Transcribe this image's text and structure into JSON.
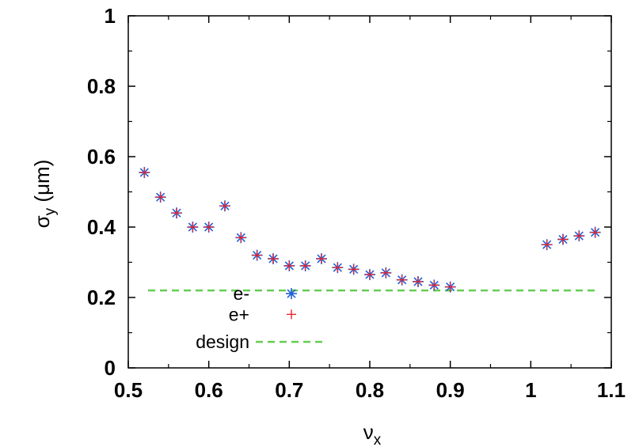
{
  "chart_data": {
    "type": "scatter",
    "title": "",
    "xlabel_main": "ν",
    "xlabel_sub": "x",
    "ylabel_main": "σ",
    "ylabel_sub": "y",
    "ylabel_unit": " (μm)",
    "xlim": [
      0.5,
      1.1
    ],
    "ylim": [
      0,
      1
    ],
    "x_ticks": [
      "0.5",
      "0.6",
      "0.7",
      "0.8",
      "0.9",
      "1",
      "1.1"
    ],
    "y_ticks": [
      "0",
      "0.2",
      "0.4",
      "0.6",
      "0.8",
      "1"
    ],
    "grid": false,
    "legend_position": "bottom-left",
    "series": [
      {
        "name": "e-",
        "marker": "asterisk",
        "color": "#1f5fd6",
        "x": [
          0.52,
          0.54,
          0.56,
          0.58,
          0.6,
          0.62,
          0.64,
          0.66,
          0.68,
          0.7,
          0.72,
          0.74,
          0.76,
          0.78,
          0.8,
          0.82,
          0.84,
          0.86,
          0.88,
          0.9,
          1.02,
          1.04,
          1.06,
          1.08
        ],
        "y": [
          0.555,
          0.485,
          0.44,
          0.4,
          0.4,
          0.46,
          0.37,
          0.32,
          0.31,
          0.29,
          0.29,
          0.31,
          0.285,
          0.28,
          0.265,
          0.27,
          0.25,
          0.245,
          0.235,
          0.23,
          0.35,
          0.365,
          0.375,
          0.385
        ]
      },
      {
        "name": "e+",
        "marker": "plus",
        "color": "#e8232b",
        "x": [
          0.52,
          0.54,
          0.56,
          0.58,
          0.6,
          0.62,
          0.64,
          0.66,
          0.68,
          0.7,
          0.72,
          0.74,
          0.76,
          0.78,
          0.8,
          0.82,
          0.84,
          0.86,
          0.88,
          0.9,
          1.02,
          1.04,
          1.06,
          1.08
        ],
        "y": [
          0.555,
          0.485,
          0.44,
          0.4,
          0.4,
          0.46,
          0.37,
          0.32,
          0.31,
          0.29,
          0.29,
          0.31,
          0.285,
          0.28,
          0.265,
          0.27,
          0.25,
          0.245,
          0.235,
          0.23,
          0.35,
          0.365,
          0.375,
          0.385
        ]
      },
      {
        "name": "design",
        "marker": "dashed-line",
        "color": "#66cc55",
        "x": [
          0.5,
          1.1
        ],
        "y": [
          0.22,
          0.22
        ]
      }
    ]
  }
}
